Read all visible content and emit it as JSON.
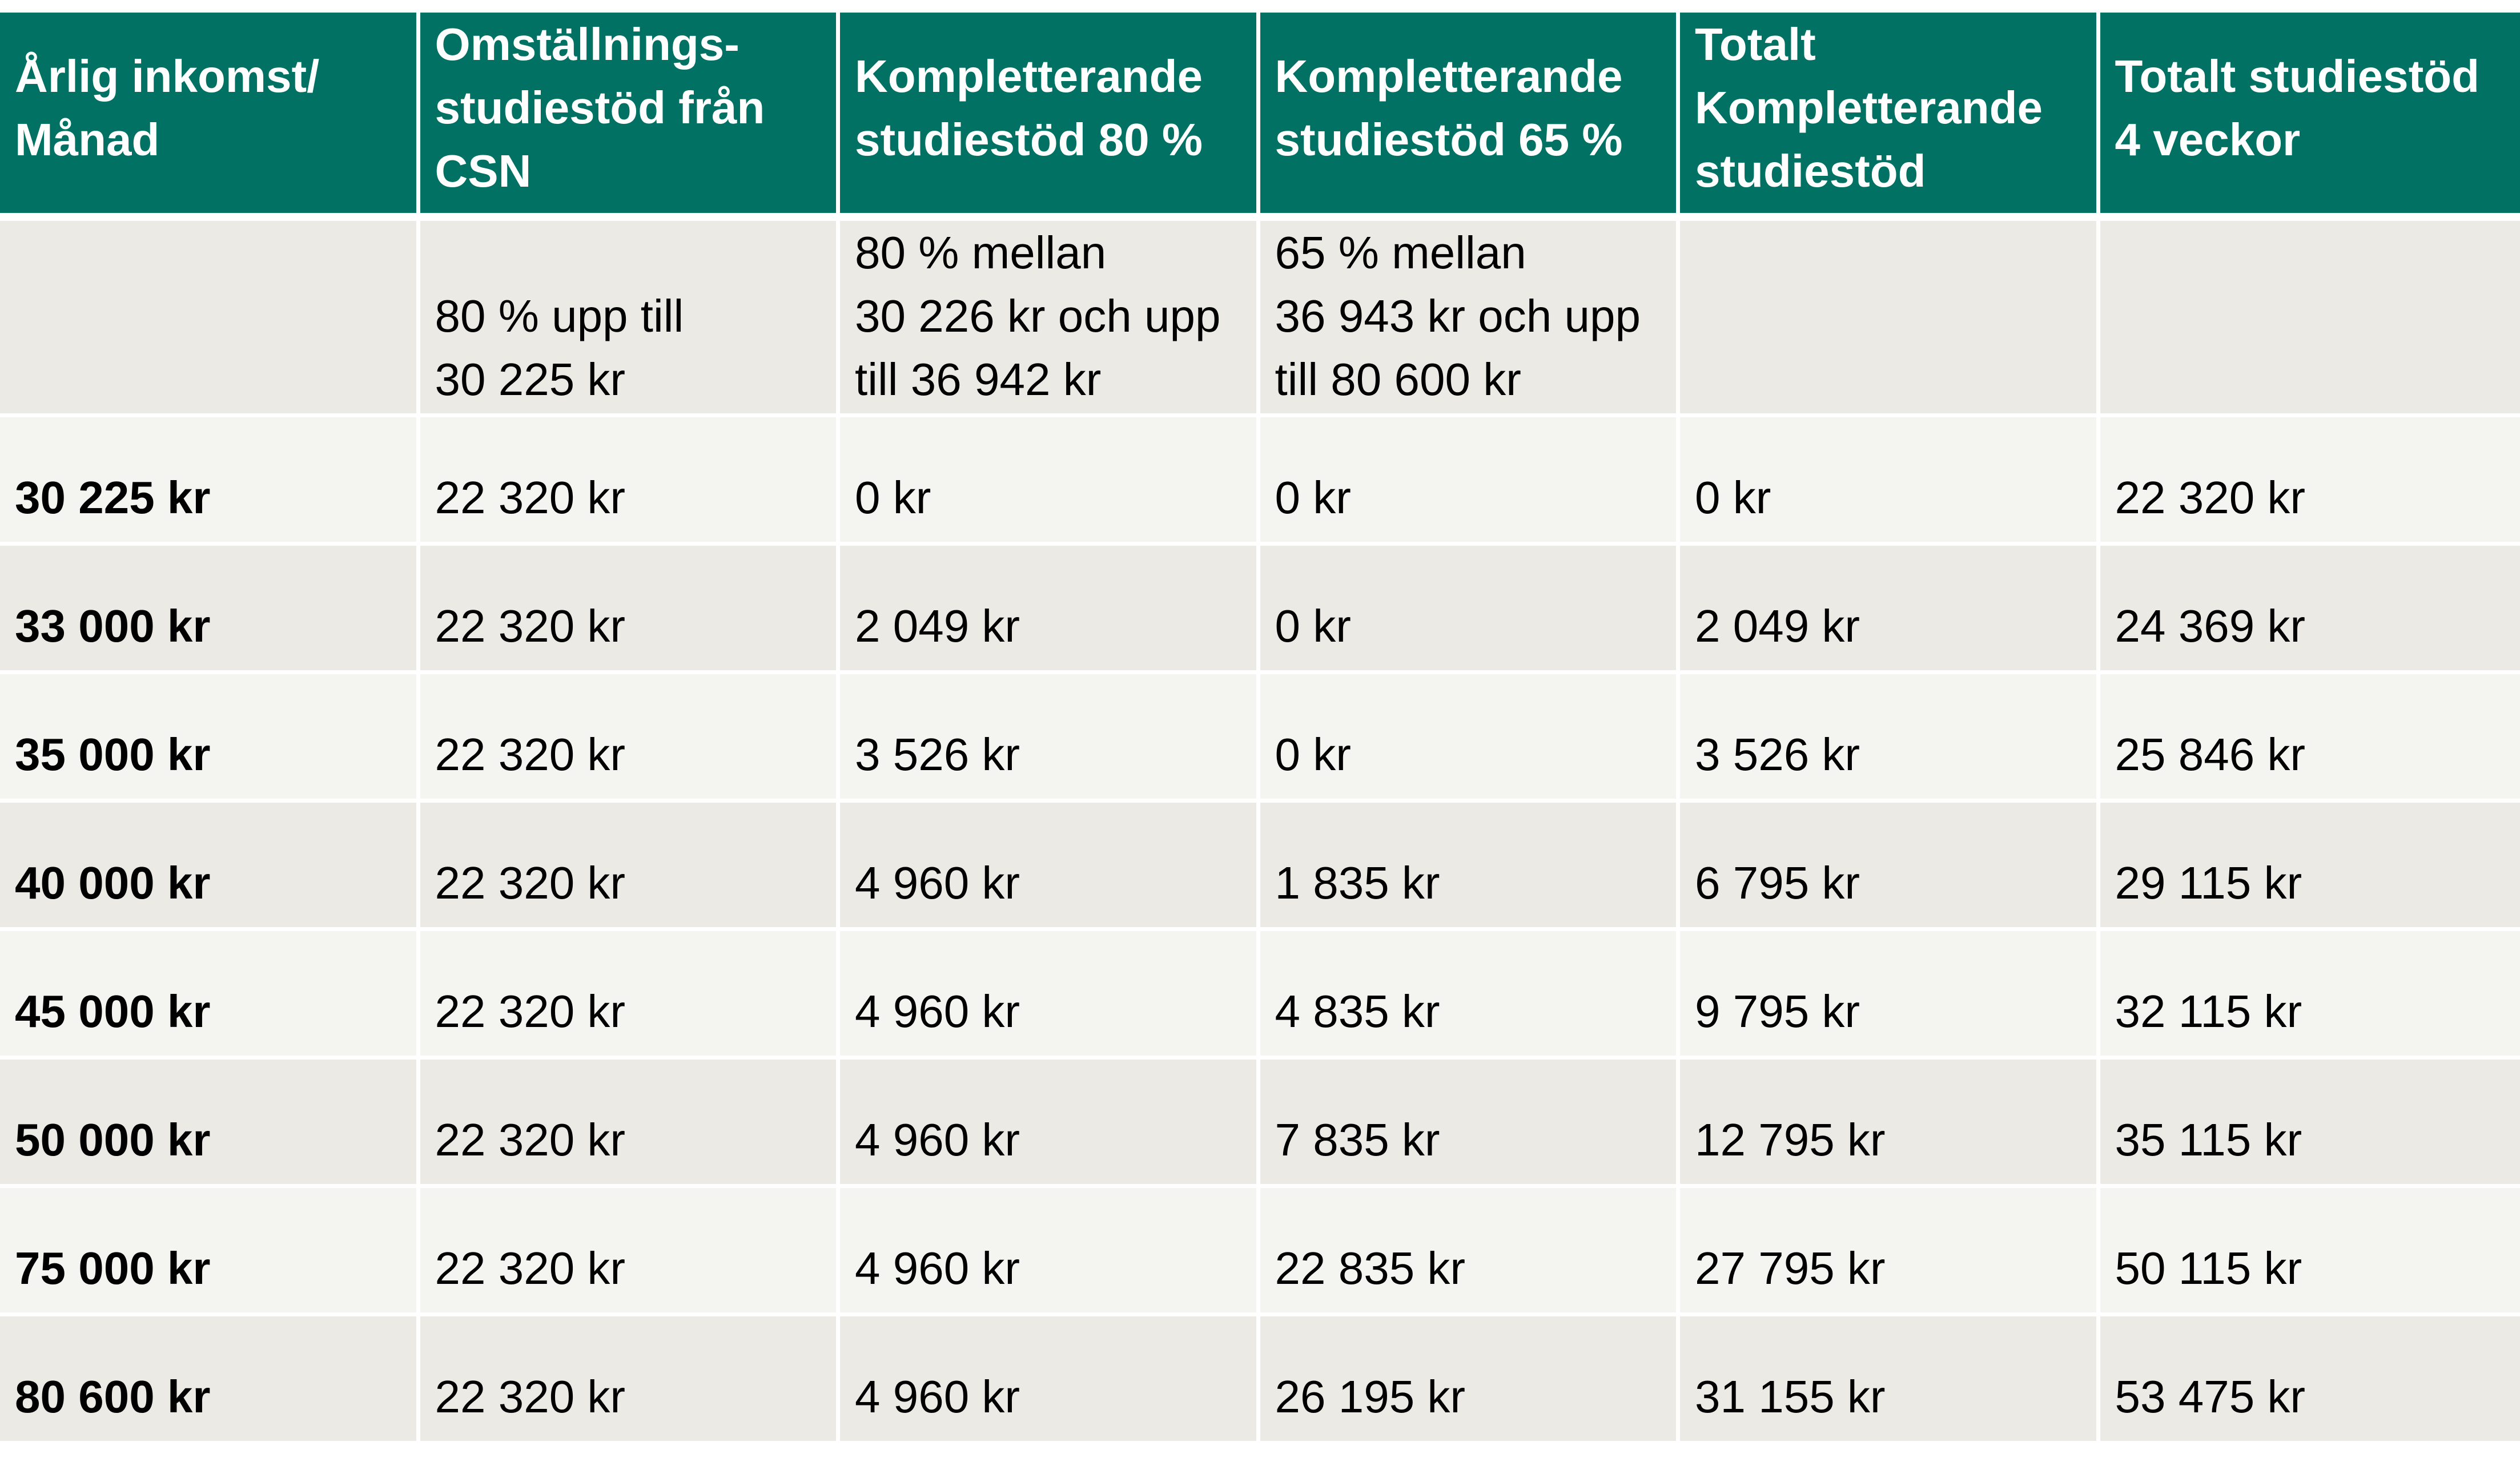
{
  "table": {
    "headers": [
      "Årlig inkomst/\nMånad",
      "Omställnings-\nstudiestöd från\nCSN",
      "Kompletterande\nstudiestöd 80 %",
      "Kompletterande\nstudiestöd 65 %",
      "Totalt\nKompletterande\nstudiestöd",
      "Totalt studiestöd\n4 veckor"
    ],
    "description_row": [
      "",
      "80 % upp till\n30 225 kr",
      "80 % mellan\n30 226 kr och upp\ntill 36 942 kr",
      "65 % mellan\n36 943 kr och upp\ntill 80 600 kr",
      "",
      ""
    ],
    "rows": [
      [
        "30 225 kr",
        "22 320 kr",
        "0 kr",
        "0 kr",
        "0 kr",
        "22 320 kr"
      ],
      [
        "33 000 kr",
        "22 320 kr",
        "2 049 kr",
        "0 kr",
        "2 049 kr",
        "24 369 kr"
      ],
      [
        "35 000 kr",
        "22 320 kr",
        "3 526 kr",
        "0 kr",
        "3 526 kr",
        "25 846 kr"
      ],
      [
        "40 000 kr",
        "22 320 kr",
        "4 960 kr",
        "1 835 kr",
        "6 795 kr",
        "29 115 kr"
      ],
      [
        "45 000 kr",
        "22 320 kr",
        "4 960 kr",
        "4 835 kr",
        "9 795 kr",
        "32 115 kr"
      ],
      [
        "50 000 kr",
        "22 320 kr",
        "4 960 kr",
        "7 835 kr",
        "12 795 kr",
        "35 115 kr"
      ],
      [
        "75 000 kr",
        "22 320 kr",
        "4 960 kr",
        "22 835 kr",
        "27 795 kr",
        "50 115 kr"
      ],
      [
        "80 600 kr",
        "22 320 kr",
        "4 960 kr",
        "26 195 kr",
        "31 155 kr",
        "53 475 kr"
      ]
    ]
  },
  "colors": {
    "header_bg": "#007163",
    "header_text": "#ffffff",
    "row_light": "#f4f5f0",
    "row_dark": "#ebeae4"
  }
}
